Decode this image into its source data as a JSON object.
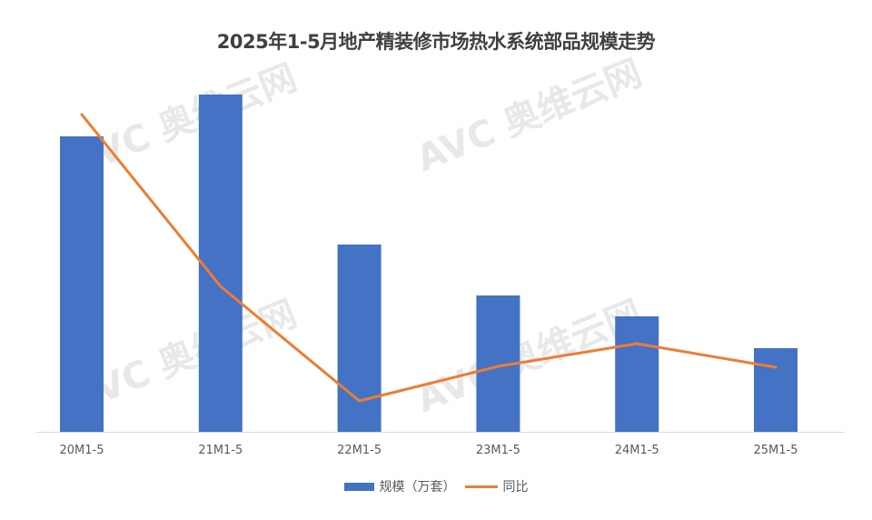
{
  "chart_data": {
    "type": "bar",
    "title": "2025年1-5月地产精装修市场热水系统部品规模走势",
    "categories": [
      "20M1-5",
      "21M1-5",
      "22M1-5",
      "23M1-5",
      "24M1-5",
      "25M1-5"
    ],
    "series": [
      {
        "name": "规模（万套）",
        "type": "bar",
        "values": [
          325,
          371,
          206,
          150,
          127,
          92
        ],
        "color": "#4472C4"
      },
      {
        "name": "同比",
        "type": "line",
        "values": [
          349,
          160,
          34,
          72,
          97,
          71
        ],
        "color": "#ED7D31"
      }
    ],
    "ylim": [
      0,
      400
    ],
    "grid": false,
    "legend": "bottom",
    "note_values_relative": true
  },
  "watermark": "AVC 奥维云网 ALL VIEW CLOUD"
}
